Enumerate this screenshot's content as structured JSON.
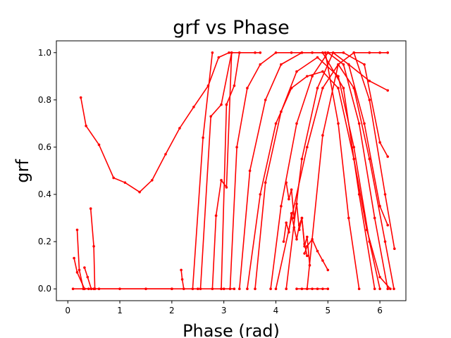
{
  "chart_data": {
    "type": "line",
    "title": "grf vs Phase",
    "xlabel": "Phase (rad)",
    "ylabel": "grf",
    "xlim": [
      -0.22,
      6.5
    ],
    "ylim": [
      -0.05,
      1.05
    ],
    "xticks": [
      "0",
      "1",
      "2",
      "3",
      "4",
      "5",
      "6"
    ],
    "yticks": [
      "0.0",
      "0.2",
      "0.4",
      "0.6",
      "0.8",
      "1.0"
    ],
    "grid": false,
    "color": "#ff0000",
    "marker": "dot",
    "series": [
      {
        "x": [
          0.25,
          0.35,
          0.6,
          0.88,
          1.1,
          1.38,
          1.62,
          1.88,
          2.15,
          2.42,
          2.7,
          2.9,
          3.1,
          3.6,
          3.7
        ],
        "y": [
          0.81,
          0.69,
          0.61,
          0.47,
          0.45,
          0.41,
          0.46,
          0.57,
          0.68,
          0.77,
          0.86,
          0.98,
          1.0,
          1.0,
          1.0
        ]
      },
      {
        "x": [
          0.18,
          0.22,
          0.3,
          0.5,
          2.0
        ],
        "y": [
          0.25,
          0.08,
          0.0,
          0.0,
          0.0
        ]
      },
      {
        "x": [
          0.12,
          0.18,
          0.32,
          0.4
        ],
        "y": [
          0.13,
          0.07,
          0.0,
          0.0
        ]
      },
      {
        "x": [
          0.32,
          0.38,
          0.45
        ],
        "y": [
          0.09,
          0.05,
          0.0
        ]
      },
      {
        "x": [
          0.44,
          0.5,
          0.52
        ],
        "y": [
          0.34,
          0.18,
          0.0
        ]
      },
      {
        "x": [
          0.1,
          0.3,
          0.6,
          1.0,
          1.5,
          2.0,
          2.5,
          3.0,
          3.2
        ],
        "y": [
          0.0,
          0.0,
          0.0,
          0.0,
          0.0,
          0.0,
          0.0,
          0.0,
          0.0
        ]
      },
      {
        "x": [
          2.18,
          2.2,
          2.23
        ],
        "y": [
          0.08,
          0.04,
          0.0
        ]
      },
      {
        "x": [
          2.4,
          2.6,
          2.78
        ],
        "y": [
          0.0,
          0.64,
          1.0
        ]
      },
      {
        "x": [
          2.78,
          2.85,
          2.95,
          3.05,
          3.15
        ],
        "y": [
          0.0,
          0.31,
          0.46,
          0.43,
          1.0
        ]
      },
      {
        "x": [
          2.55,
          2.75,
          2.95,
          3.15
        ],
        "y": [
          0.0,
          0.73,
          0.78,
          1.0
        ]
      },
      {
        "x": [
          2.95,
          3.05,
          3.2,
          3.3
        ],
        "y": [
          0.0,
          0.78,
          0.86,
          1.0
        ]
      },
      {
        "x": [
          3.12,
          3.25,
          3.45,
          3.7,
          4.0,
          4.3,
          4.5,
          4.7,
          4.95,
          5.2,
          5.4,
          5.6
        ],
        "y": [
          0.0,
          0.6,
          0.85,
          0.95,
          1.0,
          1.0,
          1.0,
          1.0,
          1.0,
          0.7,
          0.3,
          0.0
        ]
      },
      {
        "x": [
          3.3,
          3.5,
          3.8,
          4.1,
          4.5,
          4.9,
          5.3,
          5.6,
          5.9
        ],
        "y": [
          0.0,
          0.5,
          0.8,
          0.95,
          1.0,
          1.0,
          0.85,
          0.4,
          0.0
        ]
      },
      {
        "x": [
          3.6,
          3.8,
          4.1,
          4.4,
          4.8,
          5.2,
          5.5,
          5.8,
          6.0
        ],
        "y": [
          0.0,
          0.45,
          0.75,
          0.92,
          0.98,
          0.9,
          0.6,
          0.2,
          0.0
        ]
      },
      {
        "x": [
          3.9,
          4.1,
          4.4,
          4.7,
          5.0,
          5.3,
          5.6,
          5.9,
          6.15
        ],
        "y": [
          0.0,
          0.35,
          0.7,
          0.9,
          1.0,
          0.95,
          0.7,
          0.3,
          0.0
        ]
      },
      {
        "x": [
          4.2,
          4.5,
          4.8,
          5.1,
          5.4,
          5.7,
          6.0,
          6.15
        ],
        "y": [
          0.0,
          0.55,
          0.85,
          1.0,
          0.95,
          0.7,
          0.35,
          0.27
        ]
      },
      {
        "x": [
          4.6,
          4.9,
          5.2,
          5.5,
          5.8,
          6.1,
          6.28
        ],
        "y": [
          0.0,
          0.65,
          0.95,
          1.0,
          0.8,
          0.4,
          0.17
        ]
      },
      {
        "x": [
          5.0,
          5.3,
          5.7,
          6.0,
          6.15
        ],
        "y": [
          1.0,
          1.0,
          0.95,
          0.62,
          0.56
        ]
      },
      {
        "x": [
          5.5,
          5.8,
          6.0,
          6.15
        ],
        "y": [
          1.0,
          1.0,
          1.0,
          1.0
        ]
      },
      {
        "x": [
          5.4,
          5.8,
          6.15
        ],
        "y": [
          0.95,
          0.88,
          0.84
        ]
      },
      {
        "x": [
          4.4,
          4.5,
          4.6,
          4.7,
          4.8,
          4.9,
          5.0
        ],
        "y": [
          0.0,
          0.0,
          0.0,
          0.0,
          0.0,
          0.0,
          0.0
        ]
      },
      {
        "x": [
          4.0,
          4.3,
          4.6,
          4.9,
          5.2,
          5.5,
          5.8,
          6.1,
          6.27
        ],
        "y": [
          0.0,
          0.3,
          0.6,
          0.85,
          0.95,
          0.85,
          0.55,
          0.2,
          0.0
        ]
      },
      {
        "x": [
          3.45,
          3.7,
          4.0,
          4.3,
          4.6,
          4.9,
          5.2,
          5.5,
          5.75,
          6.0,
          6.2
        ],
        "y": [
          0.0,
          0.4,
          0.7,
          0.85,
          0.9,
          0.92,
          0.85,
          0.55,
          0.25,
          0.05,
          0.0
        ]
      },
      {
        "x": [
          4.2,
          4.25,
          4.3,
          4.35,
          4.4,
          4.45,
          4.5,
          4.55,
          4.6,
          4.65
        ],
        "y": [
          0.45,
          0.38,
          0.42,
          0.3,
          0.36,
          0.25,
          0.3,
          0.18,
          0.22,
          0.1
        ]
      },
      {
        "x": [
          4.15,
          4.2,
          4.25,
          4.3,
          4.35,
          4.4,
          4.45,
          4.5,
          4.55,
          4.6
        ],
        "y": [
          0.2,
          0.28,
          0.24,
          0.32,
          0.26,
          0.21,
          0.27,
          0.3,
          0.19,
          0.14
        ]
      },
      {
        "x": [
          4.55,
          4.6,
          4.7,
          4.8,
          4.9,
          5.0
        ],
        "y": [
          0.15,
          0.18,
          0.21,
          0.16,
          0.12,
          0.08
        ]
      }
    ]
  }
}
